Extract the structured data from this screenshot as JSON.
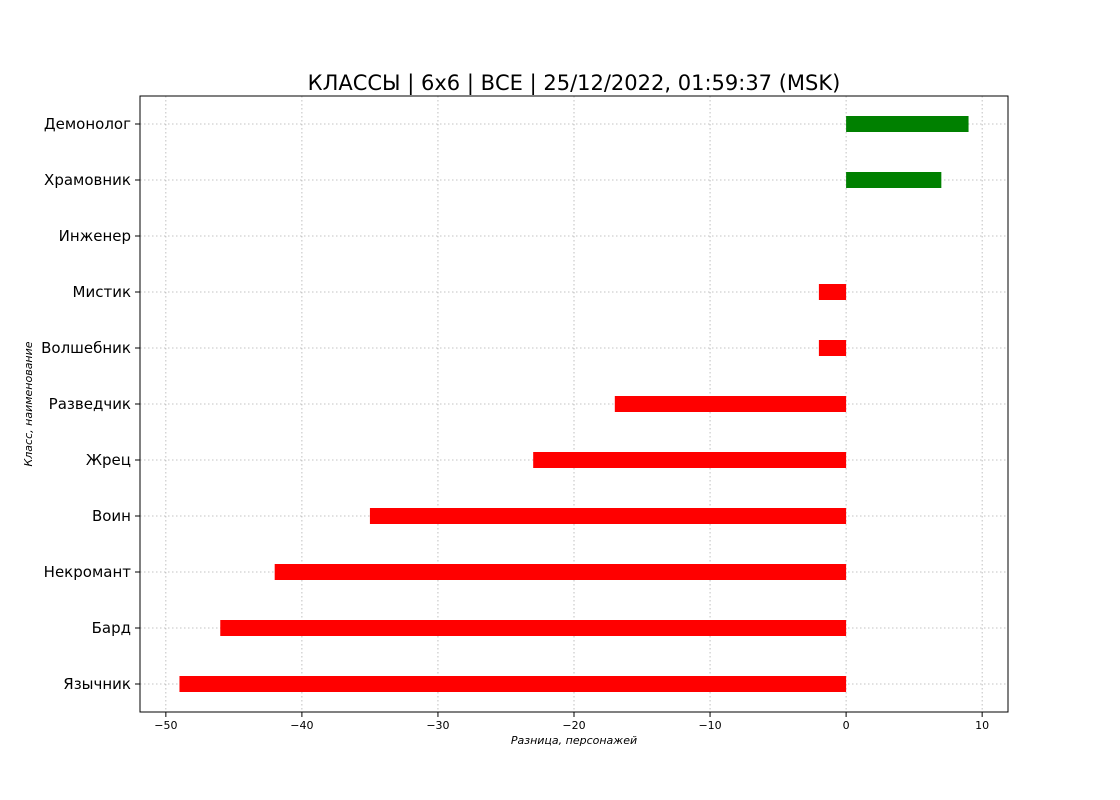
{
  "chart_data": {
    "type": "bar",
    "orientation": "horizontal",
    "title": "КЛАССЫ | 6х6 | ВСЕ | 25/12/2022, 01:59:37 (MSK)",
    "xlabel": "Разница, персонажей",
    "ylabel": "Класс, наименование",
    "categories": [
      "Демонолог",
      "Храмовник",
      "Инженер",
      "Мистик",
      "Волшебник",
      "Разведчик",
      "Жрец",
      "Воин",
      "Некромант",
      "Бард",
      "Язычник"
    ],
    "values": [
      9,
      7,
      0,
      -2,
      -2,
      -17,
      -23,
      -35,
      -42,
      -46,
      -49
    ],
    "xlim": [
      -51.9,
      11.9
    ],
    "xticks": [
      -50,
      -40,
      -30,
      -20,
      -10,
      0,
      10
    ],
    "xtick_labels": [
      "−50",
      "−40",
      "−30",
      "−20",
      "−10",
      "0",
      "10"
    ],
    "grid": true,
    "positive_color": "#008000",
    "negative_color": "#ff0000"
  }
}
